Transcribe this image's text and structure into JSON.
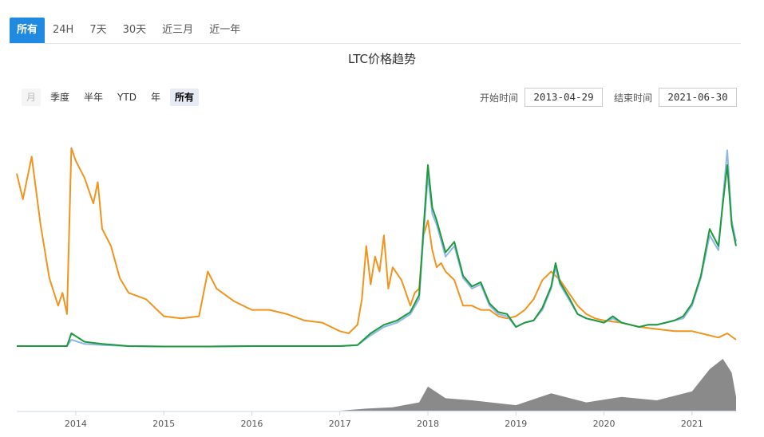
{
  "tabs": [
    {
      "label": "所有",
      "active": true
    },
    {
      "label": "24H",
      "active": false
    },
    {
      "label": "7天",
      "active": false
    },
    {
      "label": "30天",
      "active": false
    },
    {
      "label": "近三月",
      "active": false
    },
    {
      "label": "近一年",
      "active": false
    }
  ],
  "title": "LTC价格趋势",
  "range_buttons": [
    {
      "label": "月",
      "state": "disabled"
    },
    {
      "label": "季度",
      "state": "normal"
    },
    {
      "label": "半年",
      "state": "normal"
    },
    {
      "label": "YTD",
      "state": "normal"
    },
    {
      "label": "年",
      "state": "normal"
    },
    {
      "label": "所有",
      "state": "selected"
    }
  ],
  "date_range": {
    "start_label": "开始时间",
    "start_value": "2013-04-29",
    "end_label": "结束时间",
    "end_value": "2021-06-30"
  },
  "chart_data": {
    "type": "line",
    "title": "LTC价格趋势",
    "x_tick_labels": [
      "2014",
      "2015",
      "2016",
      "2017",
      "2018",
      "2019",
      "2020",
      "2021"
    ],
    "x_range": [
      2013.33,
      2021.5
    ],
    "y_range": [
      0,
      100
    ],
    "grid": false,
    "colors": {
      "light_blue": "#8fb8e6",
      "green": "#1e9a3e",
      "orange": "#f0941e",
      "volume": "#8a8a8a"
    },
    "series": [
      {
        "role": "light-blue-line",
        "color": "#8fb8e6",
        "x": [
          2013.33,
          2013.6,
          2013.9,
          2013.95,
          2014.1,
          2014.3,
          2014.6,
          2015.0,
          2015.5,
          2016.0,
          2016.5,
          2017.0,
          2017.2,
          2017.35,
          2017.5,
          2017.65,
          2017.8,
          2017.9,
          2017.95,
          2018.0,
          2018.05,
          2018.1,
          2018.2,
          2018.3,
          2018.4,
          2018.5,
          2018.6,
          2018.7,
          2018.8,
          2018.9,
          2019.0,
          2019.1,
          2019.2,
          2019.3,
          2019.4,
          2019.45,
          2019.5,
          2019.6,
          2019.7,
          2019.8,
          2019.9,
          2020.0,
          2020.1,
          2020.2,
          2020.3,
          2020.4,
          2020.5,
          2020.6,
          2020.7,
          2020.8,
          2020.9,
          2021.0,
          2021.1,
          2021.2,
          2021.3,
          2021.35,
          2021.4,
          2021.45,
          2021.5
        ],
        "y": [
          3,
          3,
          3,
          6,
          4,
          3.5,
          3,
          2.8,
          2.8,
          3,
          3,
          3,
          3.5,
          8,
          12,
          14,
          18,
          25,
          55,
          83,
          65,
          60,
          45,
          50,
          35,
          30,
          32,
          22,
          18,
          17,
          12,
          14,
          15,
          20,
          30,
          40,
          32,
          25,
          18,
          16,
          15,
          14,
          16,
          14,
          13,
          12,
          13,
          13,
          14,
          15,
          16,
          22,
          35,
          55,
          48,
          72,
          95,
          62,
          52
        ]
      },
      {
        "role": "green-line",
        "color": "#1e9a3e",
        "x": [
          2013.33,
          2013.6,
          2013.9,
          2013.95,
          2014.1,
          2014.3,
          2014.6,
          2015.0,
          2015.5,
          2016.0,
          2016.5,
          2017.0,
          2017.2,
          2017.35,
          2017.5,
          2017.65,
          2017.8,
          2017.9,
          2017.95,
          2018.0,
          2018.05,
          2018.1,
          2018.2,
          2018.3,
          2018.4,
          2018.5,
          2018.6,
          2018.7,
          2018.8,
          2018.9,
          2019.0,
          2019.1,
          2019.2,
          2019.3,
          2019.4,
          2019.45,
          2019.5,
          2019.6,
          2019.7,
          2019.8,
          2019.9,
          2020.0,
          2020.1,
          2020.2,
          2020.3,
          2020.4,
          2020.5,
          2020.6,
          2020.7,
          2020.8,
          2020.9,
          2021.0,
          2021.1,
          2021.2,
          2021.3,
          2021.35,
          2021.4,
          2021.45,
          2021.5
        ],
        "y": [
          3,
          3,
          3,
          9,
          5,
          4,
          3,
          2.8,
          2.8,
          3,
          3,
          3,
          3.5,
          9,
          13,
          15,
          19,
          27,
          58,
          88,
          68,
          62,
          47,
          52,
          36,
          31,
          33,
          23,
          19,
          18,
          12,
          14,
          15,
          21,
          31,
          42,
          33,
          26,
          18,
          16,
          15,
          14,
          17,
          14,
          13,
          12,
          13,
          13,
          14,
          15,
          17,
          23,
          36,
          58,
          50,
          70,
          88,
          60,
          50
        ]
      },
      {
        "role": "orange-line",
        "color": "#f0941e",
        "x": [
          2013.33,
          2013.4,
          2013.5,
          2013.6,
          2013.7,
          2013.8,
          2013.85,
          2013.9,
          2013.95,
          2014.0,
          2014.1,
          2014.2,
          2014.25,
          2014.3,
          2014.4,
          2014.5,
          2014.6,
          2014.8,
          2015.0,
          2015.2,
          2015.4,
          2015.5,
          2015.6,
          2015.8,
          2016.0,
          2016.2,
          2016.4,
          2016.6,
          2016.8,
          2017.0,
          2017.1,
          2017.2,
          2017.25,
          2017.3,
          2017.35,
          2017.4,
          2017.45,
          2017.5,
          2017.55,
          2017.6,
          2017.7,
          2017.8,
          2017.85,
          2017.9,
          2017.95,
          2018.0,
          2018.05,
          2018.1,
          2018.15,
          2018.2,
          2018.3,
          2018.4,
          2018.5,
          2018.6,
          2018.7,
          2018.8,
          2018.9,
          2019.0,
          2019.1,
          2019.2,
          2019.3,
          2019.4,
          2019.5,
          2019.6,
          2019.7,
          2019.8,
          2019.9,
          2020.0,
          2020.2,
          2020.4,
          2020.6,
          2020.8,
          2021.0,
          2021.2,
          2021.3,
          2021.4,
          2021.5
        ],
        "y": [
          84,
          72,
          92,
          60,
          35,
          22,
          28,
          18,
          96,
          90,
          82,
          70,
          80,
          58,
          50,
          35,
          28,
          25,
          17,
          16,
          17,
          38,
          30,
          24,
          20,
          20,
          18,
          15,
          14,
          10,
          9,
          13,
          25,
          50,
          32,
          45,
          38,
          55,
          30,
          40,
          34,
          22,
          28,
          30,
          55,
          62,
          48,
          40,
          42,
          38,
          34,
          22,
          22,
          20,
          20,
          17,
          16,
          17,
          20,
          25,
          34,
          38,
          34,
          28,
          22,
          18,
          16,
          15,
          14,
          12,
          11,
          10,
          10,
          8,
          7,
          9,
          6
        ]
      }
    ],
    "volume": {
      "x": [
        2013.33,
        2017.0,
        2017.3,
        2017.6,
        2017.9,
        2018.0,
        2018.2,
        2018.5,
        2019.0,
        2019.4,
        2019.8,
        2020.2,
        2020.6,
        2021.0,
        2021.2,
        2021.35,
        2021.45,
        2021.5
      ],
      "y": [
        0,
        0,
        3,
        5,
        12,
        35,
        18,
        15,
        8,
        25,
        12,
        20,
        15,
        28,
        60,
        75,
        55,
        20
      ]
    }
  }
}
